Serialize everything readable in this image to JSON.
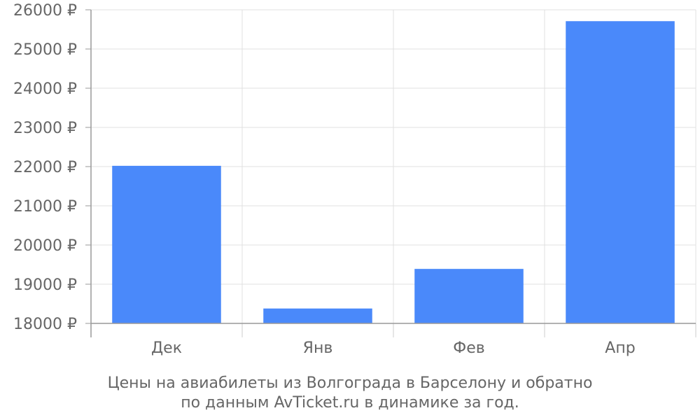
{
  "chart_data": {
    "type": "bar",
    "categories": [
      "Дек",
      "Янв",
      "Фев",
      "Апр"
    ],
    "values": [
      22020,
      18380,
      19390,
      25710
    ],
    "ylim": [
      18000,
      26000
    ],
    "yticks": [
      18000,
      19000,
      20000,
      21000,
      22000,
      23000,
      24000,
      25000,
      26000
    ],
    "y_unit": "₽",
    "grid": true,
    "bar_color": "#4a89fa",
    "caption_line1": "Цены на авиабилеты из Волгограда в Барселону и обратно",
    "caption_line2": "по данным AvTicket.ru в динамике за год."
  }
}
